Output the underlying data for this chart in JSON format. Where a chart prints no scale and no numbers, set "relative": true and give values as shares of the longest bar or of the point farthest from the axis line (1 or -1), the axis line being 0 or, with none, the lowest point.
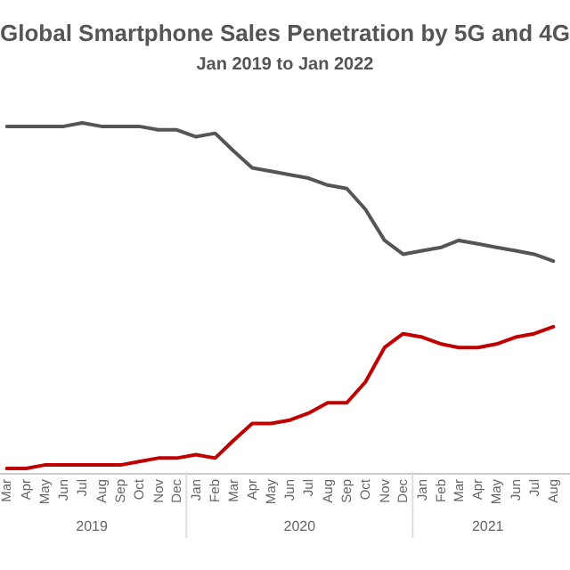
{
  "chart_data": {
    "type": "line",
    "title": "Global Smartphone Sales Penetration by 5G and 4G",
    "subtitle": "Jan 2019 to Jan 2022",
    "relative": true,
    "line_style": "solid",
    "x": [
      "2019-03",
      "2019-04",
      "2019-05",
      "2019-06",
      "2019-07",
      "2019-08",
      "2019-09",
      "2019-10",
      "2019-11",
      "2019-12",
      "2020-01",
      "2020-02",
      "2020-03",
      "2020-04",
      "2020-05",
      "2020-06",
      "2020-07",
      "2020-08",
      "2020-09",
      "2020-10",
      "2020-11",
      "2020-12",
      "2021-01",
      "2021-02",
      "2021-03",
      "2021-04",
      "2021-05",
      "2021-06",
      "2021-07",
      "2021-08"
    ],
    "xlim": [
      "2019-02-18",
      "2021-08-28"
    ],
    "xticks": [
      {
        "value": "2019-03",
        "label": "Mar"
      },
      {
        "value": "2019-04",
        "label": "Apr"
      },
      {
        "value": "2019-05",
        "label": "May"
      },
      {
        "value": "2019-06",
        "label": "Jun"
      },
      {
        "value": "2019-07",
        "label": "Jul"
      },
      {
        "value": "2019-08",
        "label": "Aug"
      },
      {
        "value": "2019-09",
        "label": "Sep"
      },
      {
        "value": "2019-10",
        "label": "Oct"
      },
      {
        "value": "2019-11",
        "label": "Nov"
      },
      {
        "value": "2019-12",
        "label": "Dec"
      },
      {
        "value": "2020-01",
        "label": "Jan"
      },
      {
        "value": "2020-02",
        "label": "Feb"
      },
      {
        "value": "2020-03",
        "label": "Mar"
      },
      {
        "value": "2020-04",
        "label": "Apr"
      },
      {
        "value": "2020-05",
        "label": "May"
      },
      {
        "value": "2020-06",
        "label": "Jun"
      },
      {
        "value": "2020-07",
        "label": "Jul"
      },
      {
        "value": "2020-08",
        "label": "Aug"
      },
      {
        "value": "2020-09",
        "label": "Sep"
      },
      {
        "value": "2020-10",
        "label": "Oct"
      },
      {
        "value": "2020-11",
        "label": "Nov"
      },
      {
        "value": "2020-12",
        "label": "Dec"
      },
      {
        "value": "2021-01",
        "label": "Jan"
      },
      {
        "value": "2021-02",
        "label": "Feb"
      },
      {
        "value": "2021-03",
        "label": "Mar"
      },
      {
        "value": "2021-04",
        "label": "Apr"
      },
      {
        "value": "2021-05",
        "label": "May"
      },
      {
        "value": "2021-06",
        "label": "Jun"
      },
      {
        "value": "2021-07",
        "label": "Jul"
      },
      {
        "value": "2021-08",
        "label": "Aug"
      }
    ],
    "annotations": [
      "2019",
      "2020",
      "2021"
    ],
    "series": [
      {
        "color": "#555555",
        "values": [
          0.99,
          0.99,
          0.99,
          0.99,
          1.0,
          0.99,
          0.99,
          0.99,
          0.98,
          0.98,
          0.96,
          0.97,
          0.92,
          0.87,
          0.86,
          0.85,
          0.84,
          0.82,
          0.81,
          0.75,
          0.66,
          0.62,
          0.63,
          0.64,
          0.66,
          0.65,
          0.64,
          0.63,
          0.62,
          0.6
        ]
      },
      {
        "color": "#c00000",
        "values": [
          0,
          0,
          0.01,
          0.01,
          0.01,
          0.01,
          0.01,
          0.02,
          0.03,
          0.03,
          0.04,
          0.03,
          0.08,
          0.13,
          0.13,
          0.14,
          0.16,
          0.19,
          0.19,
          0.25,
          0.35,
          0.39,
          0.38,
          0.36,
          0.35,
          0.35,
          0.36,
          0.38,
          0.39,
          0.41
        ]
      }
    ]
  }
}
